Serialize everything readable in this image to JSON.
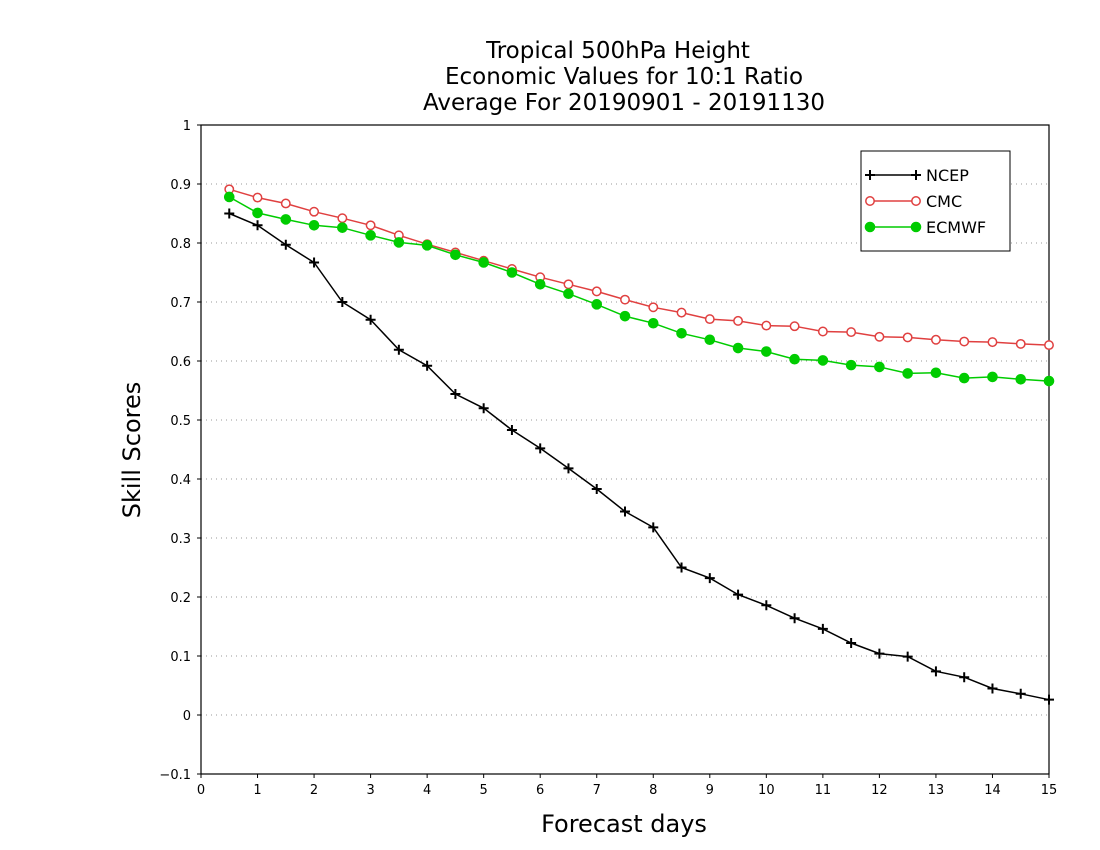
{
  "chart_data": {
    "type": "line",
    "title_lines": [
      "Tropical 500hPa Height",
      "Economic Values for 10:1 Ratio",
      "Average For 20190901 - 20191130"
    ],
    "xlabel": "Forecast days",
    "ylabel": "Skill Scores",
    "xlim": [
      0,
      15
    ],
    "ylim": [
      -0.1,
      1
    ],
    "xticks": [
      "0",
      "1",
      "2",
      "3",
      "4",
      "5",
      "6",
      "7",
      "8",
      "9",
      "10",
      "11",
      "12",
      "13",
      "14",
      "15"
    ],
    "yticks": [
      "−0.1",
      "0",
      "0.1",
      "0.2",
      "0.3",
      "0.4",
      "0.5",
      "0.6",
      "0.7",
      "0.8",
      "0.9",
      "1"
    ],
    "grid": "dotted horizontal",
    "legend_position": "top-right",
    "x": [
      0.5,
      1,
      1.5,
      2,
      2.5,
      3,
      3.5,
      4,
      4.5,
      5,
      5.5,
      6,
      6.5,
      7,
      7.5,
      8,
      8.5,
      9,
      9.5,
      10,
      10.5,
      11,
      11.5,
      12,
      12.5,
      13,
      13.5,
      14,
      14.5,
      15
    ],
    "series": [
      {
        "name": "NCEP",
        "color": "#000000",
        "marker": "plus",
        "values": [
          0.85,
          0.83,
          0.797,
          0.767,
          0.7,
          0.67,
          0.619,
          0.592,
          0.544,
          0.52,
          0.483,
          0.452,
          0.418,
          0.383,
          0.345,
          0.318,
          0.25,
          0.232,
          0.204,
          0.186,
          0.164,
          0.146,
          0.122,
          0.104,
          0.099,
          0.074,
          0.064,
          0.045,
          0.036,
          0.026
        ]
      },
      {
        "name": "CMC",
        "color": "#e04040",
        "marker": "open-circle",
        "values": [
          0.891,
          0.877,
          0.867,
          0.853,
          0.842,
          0.83,
          0.813,
          0.798,
          0.784,
          0.77,
          0.756,
          0.742,
          0.73,
          0.718,
          0.704,
          0.691,
          0.682,
          0.671,
          0.668,
          0.66,
          0.659,
          0.65,
          0.649,
          0.641,
          0.64,
          0.636,
          0.633,
          0.632,
          0.629,
          0.627
        ]
      },
      {
        "name": "ECMWF",
        "color": "#00cc00",
        "marker": "filled-circle",
        "values": [
          0.878,
          0.851,
          0.84,
          0.83,
          0.826,
          0.813,
          0.801,
          0.796,
          0.78,
          0.767,
          0.75,
          0.73,
          0.714,
          0.696,
          0.676,
          0.664,
          0.647,
          0.636,
          0.622,
          0.616,
          0.603,
          0.601,
          0.593,
          0.59,
          0.579,
          0.58,
          0.571,
          0.573,
          0.569,
          0.566
        ]
      }
    ]
  }
}
